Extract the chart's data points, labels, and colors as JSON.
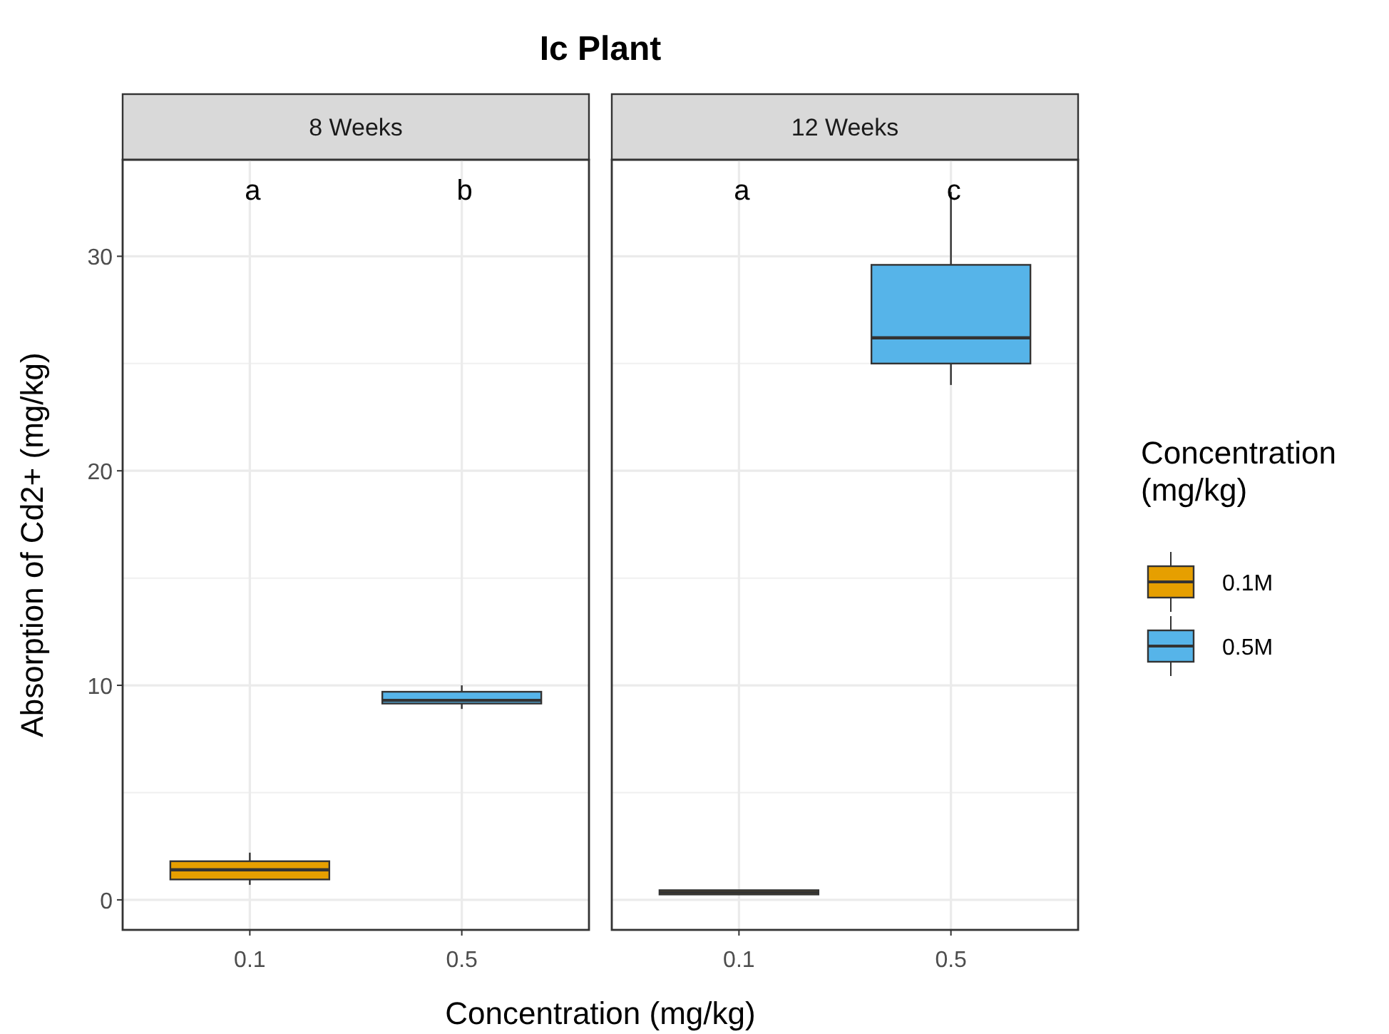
{
  "chart_data": [
    {
      "type": "box",
      "title": "Ic Plant",
      "subtitle": "8 Weeks",
      "xlabel": "Concentration (mg/kg)",
      "ylabel": "Absorption of Cd2+ (mg/kg)",
      "categories": [
        "0.1",
        "0.5"
      ],
      "ylim": [
        -1.4,
        34.5
      ],
      "yticks": [
        0,
        10,
        20,
        30
      ],
      "grid": true,
      "series": [
        {
          "color": "#e69f00",
          "boxes": [
            {
              "low": 0.7,
              "q1": 0.95,
              "median": 1.4,
              "q3": 1.8,
              "high": 2.2
            },
            null
          ]
        },
        {
          "color": "#56b4e9",
          "boxes": [
            null,
            {
              "low": 8.9,
              "q1": 9.15,
              "median": 9.3,
              "q3": 9.7,
              "high": 10.0
            }
          ]
        }
      ],
      "annotations": [
        "a",
        "b"
      ]
    },
    {
      "type": "box",
      "subtitle": "12 Weeks",
      "categories": [
        "0.1",
        "0.5"
      ],
      "ylim": [
        -1.4,
        34.5
      ],
      "yticks": [
        0,
        10,
        20,
        30
      ],
      "grid": true,
      "tick_labels": "x",
      "legend": "right",
      "legend_title": "Concentration (mg/kg)",
      "series": [
        {
          "name": "0.1M",
          "color": "#e69f00",
          "boxes": [
            {
              "low": 0.25,
              "q1": 0.25,
              "median": 0.35,
              "q3": 0.45,
              "high": 0.45
            },
            null
          ]
        },
        {
          "name": "0.5M",
          "color": "#56b4e9",
          "boxes": [
            null,
            {
              "low": 24.0,
              "q1": 25.0,
              "median": 26.2,
              "q3": 29.6,
              "high": 33.0
            }
          ]
        }
      ],
      "annotations": [
        "a",
        "c"
      ]
    }
  ]
}
